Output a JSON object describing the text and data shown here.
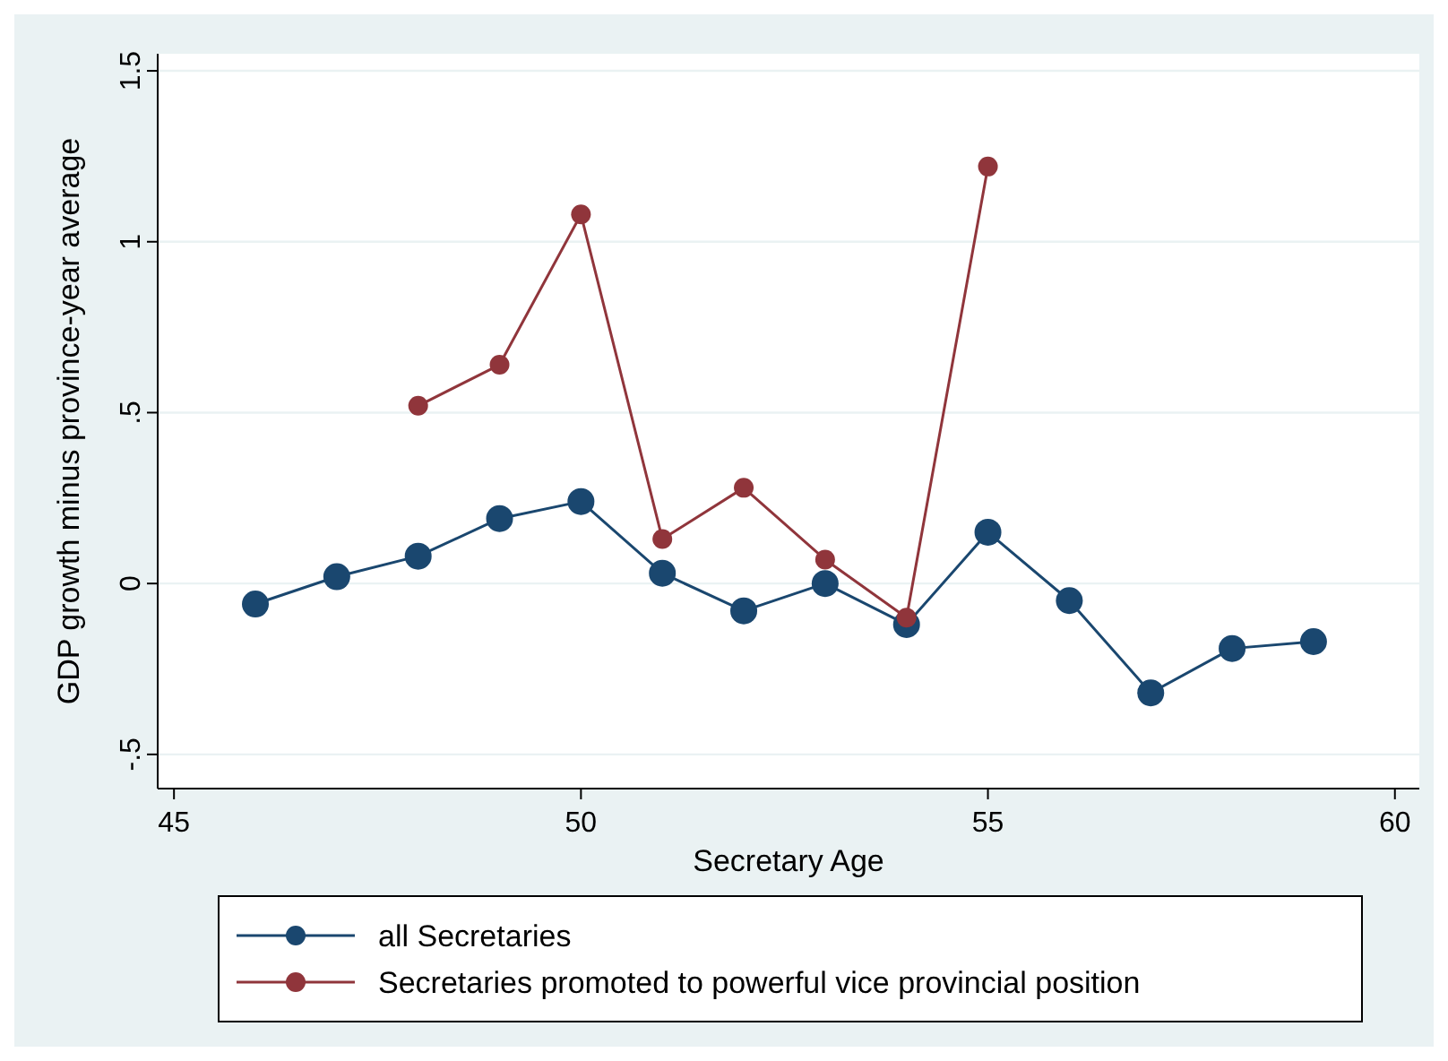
{
  "chart_data": {
    "type": "line",
    "xlabel": "Secretary Age",
    "ylabel": "GDP growth minus province-year average",
    "xlim": [
      44.8,
      60.3
    ],
    "xticks": [
      45,
      50,
      55,
      60
    ],
    "ylim": [
      -0.6,
      1.55
    ],
    "yticks": [
      {
        "value": -0.5,
        "label": "-.5"
      },
      0,
      {
        "value": 0.5,
        "label": ".5"
      },
      1,
      1.5
    ],
    "grid": "y",
    "legend": "bottom",
    "marker": "circle",
    "series": [
      {
        "name": "all Secretaries",
        "color": "#1a476f",
        "x": [
          46,
          47,
          48,
          49,
          50,
          51,
          52,
          53,
          54,
          55,
          56,
          57,
          58,
          59
        ],
        "values": [
          -0.06,
          0.02,
          0.08,
          0.19,
          0.24,
          0.03,
          -0.08,
          0,
          -0.12,
          0.15,
          -0.05,
          -0.32,
          -0.19,
          -0.17
        ]
      },
      {
        "name": "Secretaries promoted to powerful vice provincial position",
        "color": "#90353b",
        "x": [
          48,
          49,
          50,
          51,
          52,
          53,
          54,
          55
        ],
        "values": [
          0.52,
          0.64,
          1.08,
          0.13,
          0.28,
          0.07,
          -0.1,
          1.22
        ]
      }
    ]
  }
}
